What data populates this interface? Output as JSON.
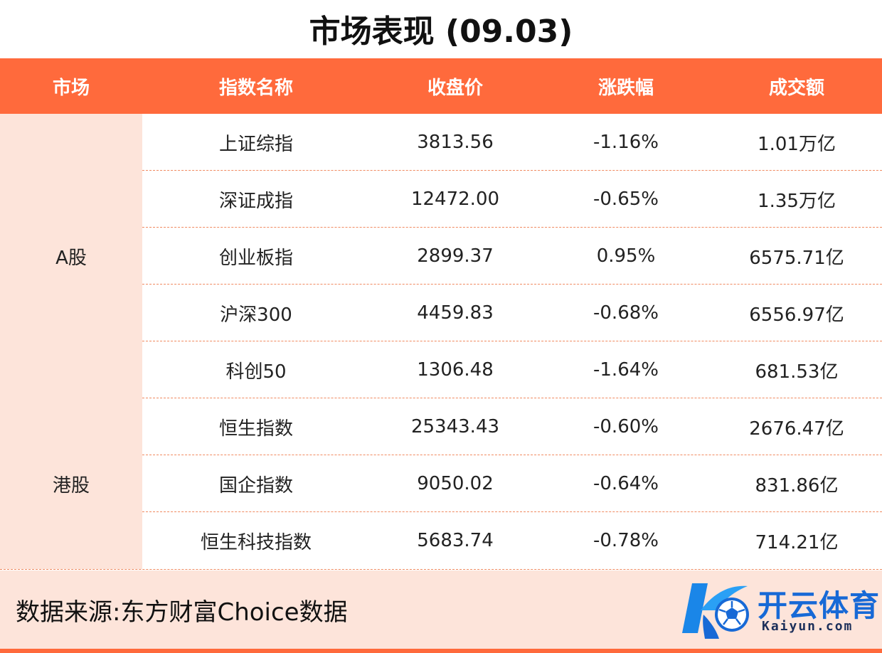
{
  "title": "市场表现 (09.03)",
  "columns": [
    "市场",
    "指数名称",
    "收盘价",
    "涨跌幅",
    "成交额"
  ],
  "markets": [
    {
      "name": "A股",
      "rows": [
        {
          "index": "上证综指",
          "close": "3813.56",
          "change": "-1.16%",
          "direction": "down",
          "turnover": "1.01万亿"
        },
        {
          "index": "深证成指",
          "close": "12472.00",
          "change": "-0.65%",
          "direction": "down",
          "turnover": "1.35万亿"
        },
        {
          "index": "创业板指",
          "close": "2899.37",
          "change": "0.95%",
          "direction": "up",
          "turnover": "6575.71亿"
        },
        {
          "index": "沪深300",
          "close": "4459.83",
          "change": "-0.68%",
          "direction": "down",
          "turnover": "6556.97亿"
        },
        {
          "index": "科创50",
          "close": "1306.48",
          "change": "-1.64%",
          "direction": "down",
          "turnover": "681.53亿"
        }
      ]
    },
    {
      "name": "港股",
      "rows": [
        {
          "index": "恒生指数",
          "close": "25343.43",
          "change": "-0.60%",
          "direction": "down",
          "turnover": "2676.47亿"
        },
        {
          "index": "国企指数",
          "close": "9050.02",
          "change": "-0.64%",
          "direction": "down",
          "turnover": "831.86亿"
        },
        {
          "index": "恒生科技指数",
          "close": "5683.74",
          "change": "-0.78%",
          "direction": "down",
          "turnover": "714.21亿"
        }
      ]
    }
  ],
  "footer": {
    "source": "数据来源:东方财富Choice数据",
    "brand_name": "开云体育",
    "brand_domain": "Kaiyun.com",
    "logo_icon": "kaiyun-soccer-logo-icon"
  },
  "colors": {
    "header": "#ff6a3c",
    "market_bg": "#fde4da",
    "negative": "#1e9a3a",
    "positive": "#e8201c",
    "brand": "#1769d6"
  }
}
